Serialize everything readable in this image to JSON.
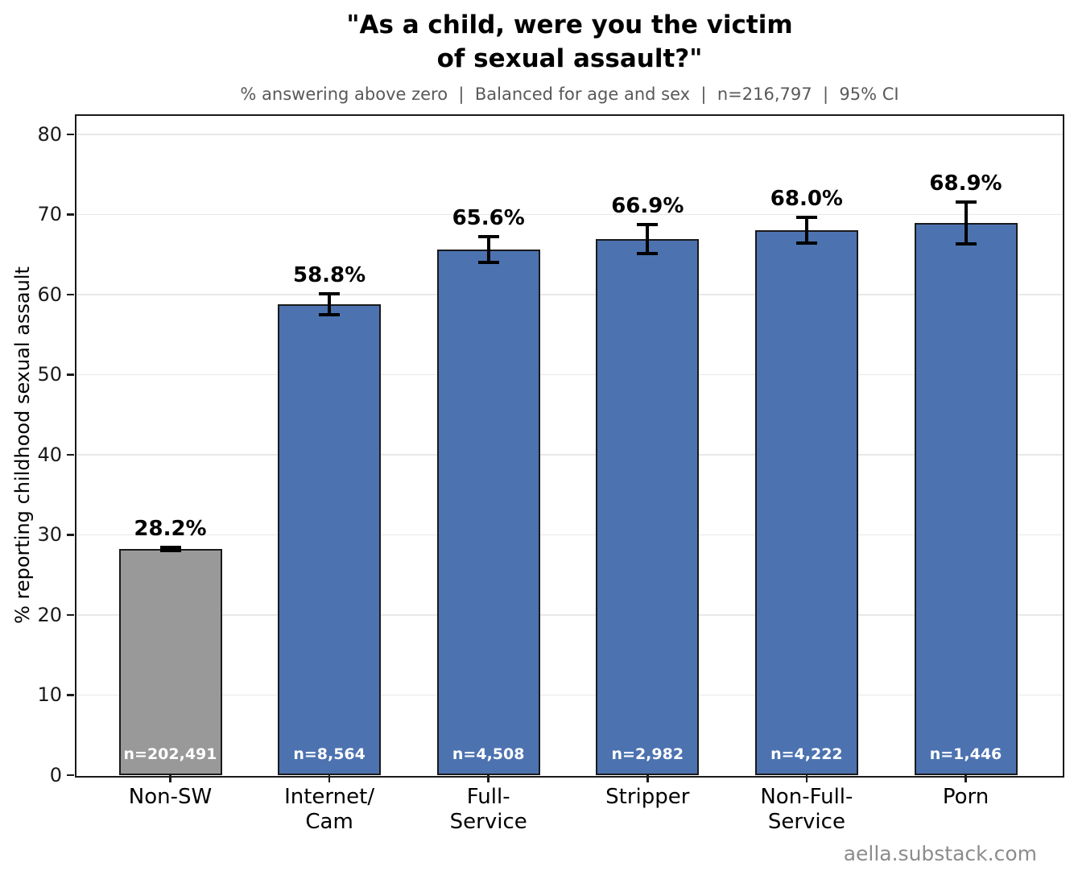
{
  "footer": {
    "watermark": "aella.substack.com"
  },
  "chart_data": {
    "type": "bar",
    "title": "\"As a child, were you the victim\nof sexual assault?\"",
    "subtitle": "% answering above zero  |  Balanced for age and sex  |  n=216,797  |  95% CI",
    "xlabel": "",
    "ylabel": "% reporting childhood sexual assault",
    "ylim": [
      0,
      82.3
    ],
    "yticks": [
      0,
      10,
      20,
      30,
      40,
      50,
      60,
      70,
      80
    ],
    "grid": "horizontal",
    "legend": "none",
    "categories": [
      "Non-SW",
      "Internet/\nCam",
      "Full-\nService",
      "Stripper",
      "Non-Full-\nService",
      "Porn"
    ],
    "series": [
      {
        "name": "% reporting childhood sexual assault",
        "values": [
          28.2,
          58.8,
          65.6,
          66.9,
          68.0,
          68.9
        ],
        "value_labels": [
          "28.2%",
          "58.8%",
          "65.6%",
          "66.9%",
          "68.0%",
          "68.9%"
        ],
        "ci_errors": [
          0.2,
          1.3,
          1.6,
          1.8,
          1.6,
          2.6
        ],
        "n_labels": [
          "n=202,491",
          "n=8,564",
          "n=4,508",
          "n=2,982",
          "n=4,222",
          "n=1,446"
        ],
        "bar_colors": [
          "#999999",
          "#4c72b0",
          "#4c72b0",
          "#4c72b0",
          "#4c72b0",
          "#4c72b0"
        ]
      }
    ],
    "colors": {
      "bar_blue": "#4c72b0",
      "bar_gray": "#999999",
      "bar_edge": "#1a1a1a",
      "error_bar": "#000000",
      "gridline": "#e8e8e8",
      "subtitle_text": "#595959",
      "watermark_text": "#8c8c8c"
    }
  }
}
